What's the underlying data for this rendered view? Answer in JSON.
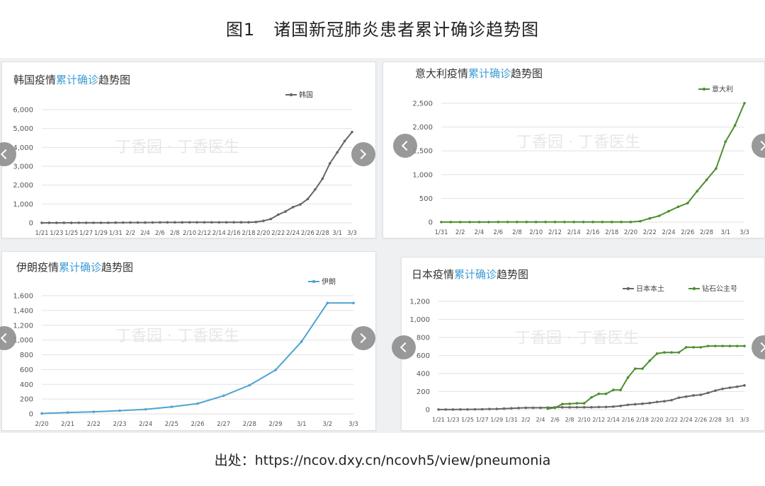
{
  "figure": {
    "title_num": "图1",
    "title_text": "诸国新冠肺炎患者累计确诊趋势图",
    "source_prefix": "出处：",
    "source_url": "https://ncov.dxy.cn/ncovh5/view/pneumonia",
    "watermark": "丁香园 · 丁香医生"
  },
  "chart_data": [
    {
      "type": "line",
      "title_prefix": "韩国疫情",
      "title_highlight": "累计确诊",
      "title_suffix": "趋势图",
      "x": [
        "1/21",
        "1/22",
        "1/23",
        "1/24",
        "1/25",
        "1/26",
        "1/27",
        "1/28",
        "1/29",
        "1/30",
        "1/31",
        "2/1",
        "2/2",
        "2/3",
        "2/4",
        "2/5",
        "2/6",
        "2/7",
        "2/8",
        "2/9",
        "2/10",
        "2/11",
        "2/12",
        "2/13",
        "2/14",
        "2/15",
        "2/16",
        "2/17",
        "2/18",
        "2/19",
        "2/20",
        "2/21",
        "2/22",
        "2/23",
        "2/24",
        "2/25",
        "2/26",
        "2/27",
        "2/28",
        "2/29",
        "3/1",
        "3/2",
        "3/3"
      ],
      "x_tick_labels": [
        "1/21",
        "1/23",
        "1/25",
        "1/27",
        "1/29",
        "1/31",
        "2/2",
        "2/4",
        "2/6",
        "2/8",
        "2/10",
        "2/12",
        "2/14",
        "2/16",
        "2/18",
        "2/20",
        "2/22",
        "2/24",
        "2/26",
        "2/28",
        "3/1",
        "3/3"
      ],
      "series": [
        {
          "name": "韩国",
          "color": "#666666",
          "values": [
            1,
            1,
            1,
            2,
            2,
            3,
            4,
            4,
            4,
            4,
            11,
            12,
            15,
            15,
            16,
            18,
            23,
            24,
            24,
            25,
            27,
            28,
            28,
            28,
            28,
            28,
            29,
            30,
            31,
            46,
            104,
            204,
            433,
            602,
            833,
            977,
            1261,
            1766,
            2337,
            3150,
            3736,
            4335,
            4812
          ]
        }
      ],
      "ylim": [
        0,
        6000
      ],
      "y_ticks": [
        "0",
        "1,000",
        "2,000",
        "3,000",
        "4,000",
        "5,000",
        "6,000"
      ],
      "grid": "horizontal",
      "legend": "top-right"
    },
    {
      "type": "line",
      "title_prefix": "意大利疫情",
      "title_highlight": "累计确诊",
      "title_suffix": "趋势图",
      "x": [
        "1/31",
        "2/1",
        "2/2",
        "2/3",
        "2/4",
        "2/5",
        "2/6",
        "2/7",
        "2/8",
        "2/9",
        "2/10",
        "2/11",
        "2/12",
        "2/13",
        "2/14",
        "2/15",
        "2/16",
        "2/17",
        "2/18",
        "2/19",
        "2/20",
        "2/21",
        "2/22",
        "2/23",
        "2/24",
        "2/25",
        "2/26",
        "2/27",
        "2/28",
        "2/29",
        "3/1",
        "3/2",
        "3/3"
      ],
      "x_tick_labels": [
        "1/31",
        "2/2",
        "2/4",
        "2/6",
        "2/8",
        "2/10",
        "2/12",
        "2/14",
        "2/16",
        "2/18",
        "2/20",
        "2/22",
        "2/24",
        "2/26",
        "2/28",
        "3/1",
        "3/3"
      ],
      "series": [
        {
          "name": "意大利",
          "color": "#4d8f2d",
          "values": [
            2,
            2,
            2,
            2,
            2,
            2,
            3,
            3,
            3,
            3,
            3,
            3,
            3,
            3,
            3,
            3,
            3,
            3,
            3,
            3,
            3,
            20,
            79,
            132,
            229,
            322,
            400,
            650,
            888,
            1128,
            1694,
            2036,
            2502
          ]
        }
      ],
      "ylim": [
        0,
        2500
      ],
      "y_ticks": [
        "0",
        "500",
        "1,000",
        "1,500",
        "2,000",
        "2,500"
      ],
      "grid": "horizontal",
      "legend": "top-right"
    },
    {
      "type": "line",
      "title_prefix": "伊朗疫情",
      "title_highlight": "累计确诊",
      "title_suffix": "趋势图",
      "x": [
        "2/20",
        "2/21",
        "2/22",
        "2/23",
        "2/24",
        "2/25",
        "2/26",
        "2/27",
        "2/28",
        "2/29",
        "3/1",
        "3/2",
        "3/3"
      ],
      "x_tick_labels": [
        "2/20",
        "2/21",
        "2/22",
        "2/23",
        "2/24",
        "2/25",
        "2/26",
        "2/27",
        "2/28",
        "2/29",
        "3/1",
        "3/2",
        "3/3"
      ],
      "series": [
        {
          "name": "伊朗",
          "color": "#4fa3d1",
          "values": [
            5,
            18,
            28,
            43,
            61,
            95,
            139,
            245,
            388,
            593,
            978,
            1501,
            1501
          ]
        }
      ],
      "ylim": [
        0,
        1600
      ],
      "y_ticks": [
        "0",
        "200",
        "400",
        "600",
        "800",
        "1,000",
        "1,200",
        "1,400",
        "1,600"
      ],
      "grid": "horizontal",
      "legend": "top-right"
    },
    {
      "type": "line",
      "title_prefix": "日本疫情",
      "title_highlight": "累计确诊",
      "title_suffix": "趋势图",
      "x": [
        "1/21",
        "1/22",
        "1/23",
        "1/24",
        "1/25",
        "1/26",
        "1/27",
        "1/28",
        "1/29",
        "1/30",
        "1/31",
        "2/1",
        "2/2",
        "2/3",
        "2/4",
        "2/5",
        "2/6",
        "2/7",
        "2/8",
        "2/9",
        "2/10",
        "2/11",
        "2/12",
        "2/13",
        "2/14",
        "2/15",
        "2/16",
        "2/17",
        "2/18",
        "2/19",
        "2/20",
        "2/21",
        "2/22",
        "2/23",
        "2/24",
        "2/25",
        "2/26",
        "2/27",
        "2/28",
        "2/29",
        "3/1",
        "3/2",
        "3/3"
      ],
      "x_tick_labels": [
        "1/21",
        "1/23",
        "1/25",
        "1/27",
        "1/29",
        "1/31",
        "2/2",
        "2/4",
        "2/6",
        "2/8",
        "2/10",
        "2/12",
        "2/14",
        "2/16",
        "2/18",
        "2/20",
        "2/22",
        "2/24",
        "2/26",
        "2/28",
        "3/1",
        "3/3"
      ],
      "series": [
        {
          "name": "日本本土",
          "color": "#666666",
          "values": [
            1,
            1,
            1,
            2,
            2,
            3,
            4,
            6,
            7,
            11,
            14,
            17,
            20,
            20,
            20,
            22,
            25,
            25,
            25,
            26,
            26,
            26,
            28,
            29,
            33,
            41,
            53,
            59,
            65,
            73,
            85,
            93,
            105,
            132,
            144,
            157,
            164,
            186,
            210,
            230,
            243,
            254,
            268
          ]
        },
        {
          "name": "钻石公主号",
          "color": "#4d8f2d",
          "values": [
            null,
            null,
            null,
            null,
            null,
            null,
            null,
            null,
            null,
            null,
            null,
            null,
            null,
            null,
            null,
            10,
            20,
            61,
            64,
            70,
            70,
            135,
            175,
            175,
            218,
            218,
            355,
            454,
            454,
            542,
            621,
            634,
            634,
            634,
            691,
            691,
            691,
            705,
            705,
            705,
            705,
            705,
            705
          ]
        }
      ],
      "ylim": [
        0,
        1200
      ],
      "y_ticks": [
        "0",
        "200",
        "400",
        "600",
        "800",
        "1,000",
        "1,200"
      ],
      "grid": "horizontal",
      "legend": "top-right"
    }
  ]
}
